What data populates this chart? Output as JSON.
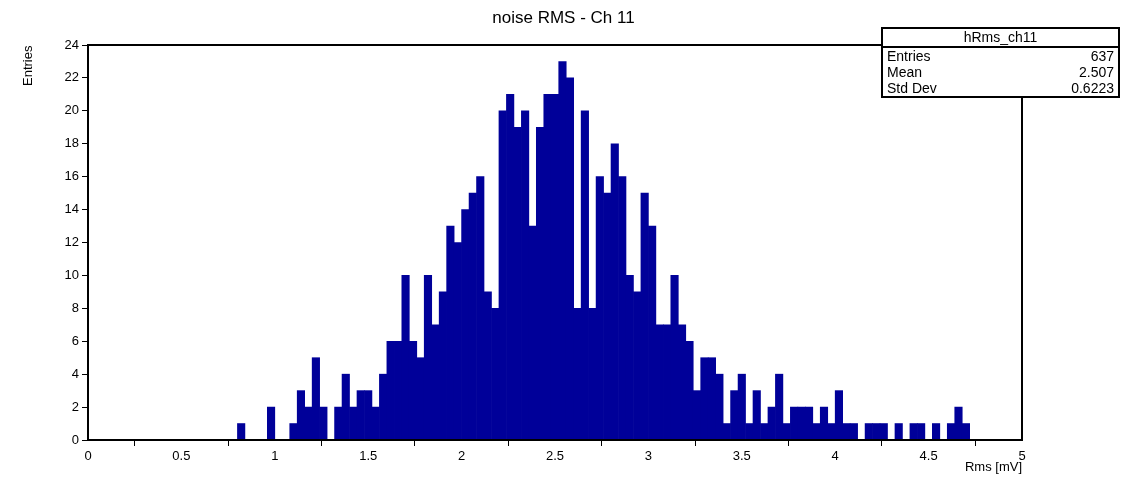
{
  "chart_data": {
    "type": "histogram",
    "title": "noise RMS - Ch 11",
    "xlabel": "Rms [mV]",
    "ylabel": "Entries",
    "annotations": [
      "hRms_ch11",
      "Entries",
      "637",
      "Mean",
      "2.507",
      "Std Dev",
      "0.6223"
    ],
    "bins": [
      0,
      0.04,
      0.08,
      0.12,
      0.16,
      0.2,
      0.24,
      0.28,
      0.32,
      0.36,
      0.4,
      0.44,
      0.48,
      0.52,
      0.56,
      0.6,
      0.64,
      0.68,
      0.72,
      0.76,
      0.8,
      0.84,
      0.88,
      0.92,
      0.96,
      1,
      1.04,
      1.08,
      1.12,
      1.16,
      1.2,
      1.24,
      1.28,
      1.32,
      1.36,
      1.4,
      1.44,
      1.48,
      1.52,
      1.56,
      1.6,
      1.64,
      1.68,
      1.72,
      1.76,
      1.8,
      1.84,
      1.88,
      1.92,
      1.96,
      2,
      2.04,
      2.08,
      2.12,
      2.16,
      2.2,
      2.24,
      2.28,
      2.32,
      2.36,
      2.4,
      2.44,
      2.48,
      2.52,
      2.56,
      2.6,
      2.64,
      2.68,
      2.72,
      2.76,
      2.8,
      2.84,
      2.88,
      2.92,
      2.96,
      3,
      3.04,
      3.08,
      3.12,
      3.16,
      3.2,
      3.24,
      3.28,
      3.32,
      3.36,
      3.4,
      3.44,
      3.48,
      3.52,
      3.56,
      3.6,
      3.64,
      3.68,
      3.72,
      3.76,
      3.8,
      3.84,
      3.88,
      3.92,
      3.96,
      4,
      4.04,
      4.08,
      4.12,
      4.16,
      4.2,
      4.24,
      4.28,
      4.32,
      4.36,
      4.4,
      4.44,
      4.48,
      4.52,
      4.56,
      4.6,
      4.64,
      4.68,
      4.72,
      4.76,
      4.8,
      4.84,
      4.88,
      4.92,
      4.96,
      5
    ],
    "values": [
      0,
      0,
      0,
      0,
      0,
      0,
      0,
      0,
      0,
      0,
      0,
      0,
      0,
      0,
      0,
      0,
      0,
      0,
      0,
      0,
      1,
      0,
      0,
      0,
      2,
      0,
      0,
      1,
      3,
      2,
      5,
      2,
      0,
      2,
      4,
      2,
      3,
      3,
      2,
      4,
      6,
      6,
      10,
      6,
      5,
      10,
      7,
      9,
      13,
      12,
      14,
      15,
      16,
      9,
      8,
      20,
      21,
      19,
      20,
      13,
      19,
      21,
      21,
      23,
      22,
      8,
      20,
      8,
      16,
      15,
      18,
      16,
      10,
      9,
      15,
      13,
      7,
      7,
      10,
      7,
      6,
      3,
      5,
      5,
      4,
      1,
      3,
      4,
      1,
      3,
      1,
      2,
      4,
      1,
      2,
      2,
      2,
      1,
      2,
      1,
      3,
      1,
      1,
      0,
      1,
      1,
      1,
      0,
      1,
      0,
      1,
      1,
      0,
      1,
      0,
      1,
      2,
      1,
      0,
      0,
      0,
      0,
      0,
      0,
      0
    ],
    "color": "#000099",
    "xlim": [
      0,
      5
    ],
    "xticks": [
      0,
      0.5,
      1,
      1.5,
      2,
      2.5,
      3,
      3.5,
      4,
      4.5,
      5
    ],
    "ylim": [
      0,
      24
    ],
    "yticks": [
      0,
      2,
      4,
      6,
      8,
      10,
      12,
      14,
      16,
      18,
      20,
      22,
      24
    ],
    "grid": false,
    "legend": false
  }
}
